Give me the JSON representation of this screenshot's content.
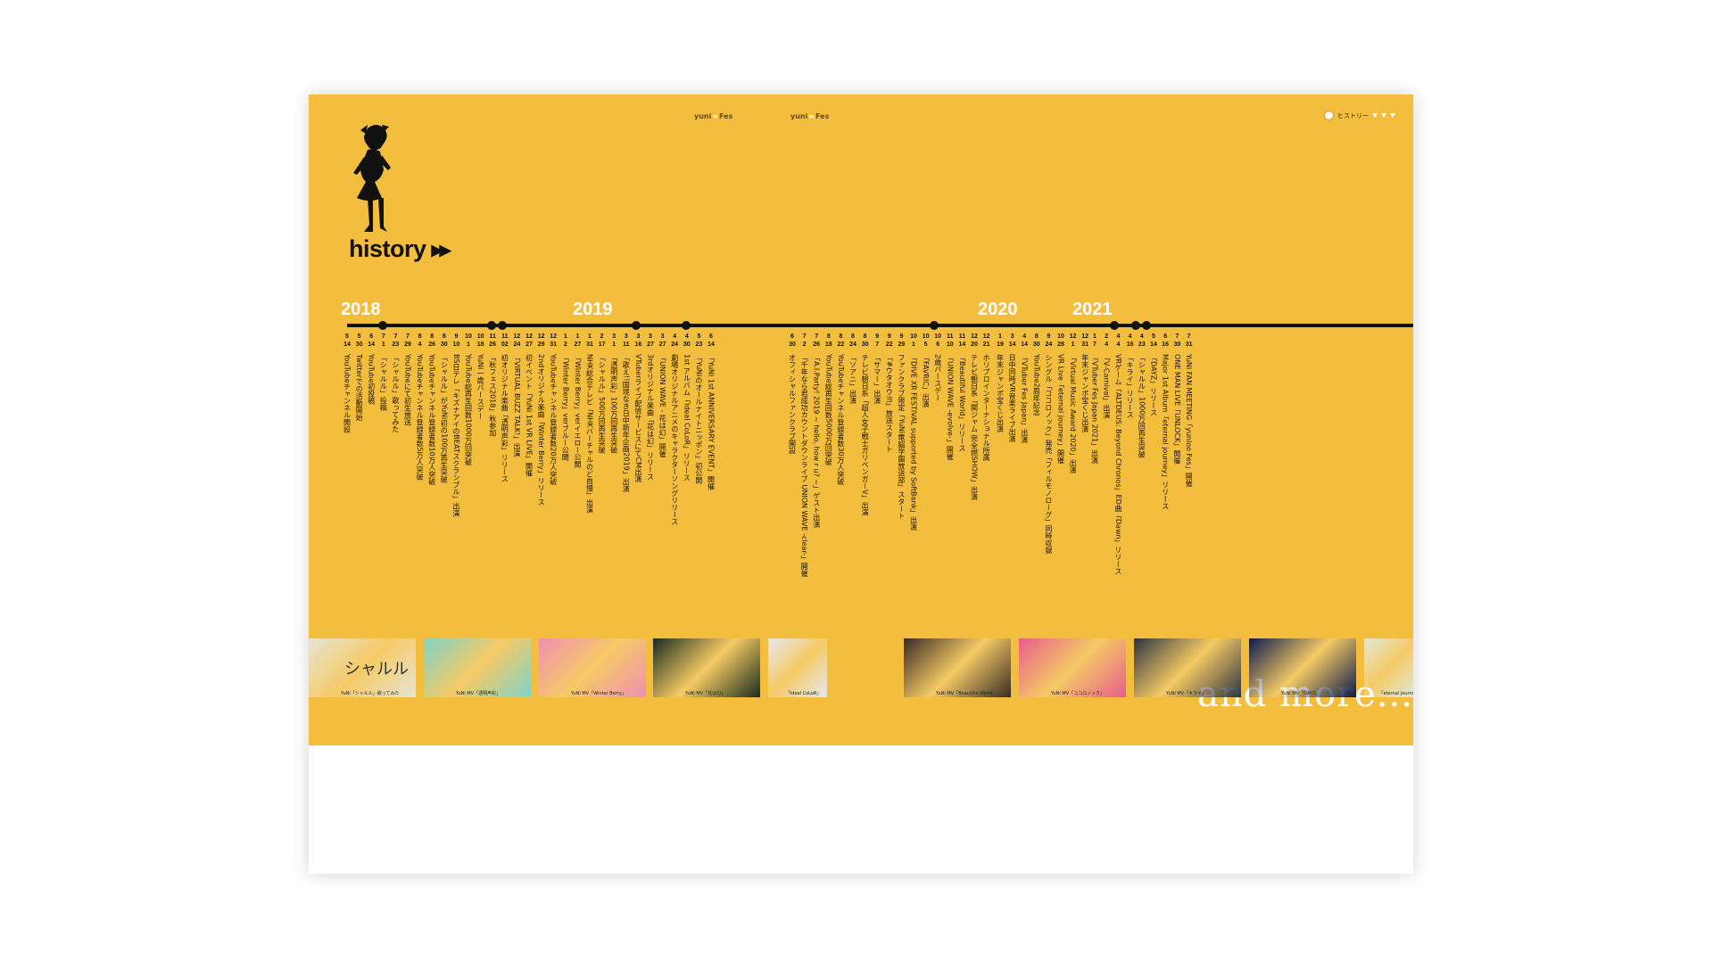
{
  "header": {
    "fest_logo_left": {
      "pre": "yuni",
      "mid": "∞",
      "post": "Fes"
    },
    "fest_logo_right": {
      "pre": "yuni",
      "mid": "∞",
      "post": "Fes"
    },
    "nav_label": "ヒストリー"
  },
  "title": "history",
  "title_arrow": "▶▶",
  "years": [
    "2018",
    "2019",
    "2020",
    "2021"
  ],
  "events": [
    {
      "m": "5",
      "d": "14",
      "t": "YouTubeチャンネル開設"
    },
    {
      "m": "5",
      "d": "30",
      "t": "Twitterでの活動開始"
    },
    {
      "m": "6",
      "d": "14",
      "t": "YouTube初投稿"
    },
    {
      "m": "7",
      "d": "1",
      "t": "「シャルル」投稿"
    },
    {
      "m": "7",
      "d": "23",
      "t": "「シャルル」歌ってみた"
    },
    {
      "m": "7",
      "d": "29",
      "t": "YouTubeにて初生放送"
    },
    {
      "m": "8",
      "d": "4",
      "t": "YouTubeチャンネル登録者数5万人突破"
    },
    {
      "m": "8",
      "d": "26",
      "t": "YouTubeチャンネル登録者数10万人突破"
    },
    {
      "m": "8",
      "d": "30",
      "t": "「シャルル」がYuNi初の100万再生突破"
    },
    {
      "m": "9",
      "d": "10",
      "t": "BS日テレ「キズナアイのBEATスクランブル」出演"
    },
    {
      "m": "10",
      "d": "1",
      "t": "YouTube総再生回数1000万回突破"
    },
    {
      "m": "10",
      "d": "18",
      "t": "YuNi一歳バースデー"
    },
    {
      "m": "11",
      "d": "26",
      "t": "「秋フェス2018」秋参加"
    },
    {
      "m": "11",
      "d": "02",
      "t": "初オリジナル楽曲「透明声彩」リリース"
    },
    {
      "m": "12",
      "d": "24",
      "t": "「VIRTUAL BUZZ TALK!」出演"
    },
    {
      "m": "12",
      "d": "27",
      "t": "初イベント「YuNi 1st VR LIVE」開催"
    },
    {
      "m": "12",
      "d": "29",
      "t": "2ndオリジナル楽曲「Winter Berry」リリース"
    },
    {
      "m": "12",
      "d": "31",
      "t": "YouTubeチャンネル登録者数20万人突破"
    },
    {
      "m": "1",
      "d": "2",
      "t": "「Winter Berry」verブルー公開"
    },
    {
      "m": "1",
      "d": "27",
      "t": "「Winter Berry」verイエロー公開"
    },
    {
      "m": "1",
      "d": "31",
      "t": "NHK総合テレビ「NHKバーチャルのど自慢」出演"
    },
    {
      "m": "2",
      "d": "17",
      "t": "「シャルル」500万回再生突破"
    },
    {
      "m": "3",
      "d": "1",
      "t": "「透明声彩」100万回再生突破"
    },
    {
      "m": "3",
      "d": "11",
      "t": "「歌え!!国境なき日中新年企画2019」出演"
    },
    {
      "m": "3",
      "d": "16",
      "t": "VTuberライブ配信サービスにてCM出演"
    },
    {
      "m": "3",
      "d": "27",
      "t": "3rdオリジナル楽曲「花は幻」リリース"
    },
    {
      "m": "3",
      "d": "27",
      "t": "「UNION WAVE - 花は幻」開催"
    },
    {
      "m": "4",
      "d": "24",
      "t": "劇場オリジナルアニメのキャラクターソングリリース"
    },
    {
      "m": "4",
      "d": "30",
      "t": "1st アルバム「Ideal CoLoR」リリース"
    },
    {
      "m": "5",
      "d": "23",
      "t": "「YuNiのオールナイトニッポン」初公開"
    },
    {
      "m": "6",
      "d": "14",
      "t": "「YuNi 1st ANNIVERSARY EVENT」開催"
    },
    {
      "m": "6",
      "d": "30",
      "t": "オフィシャルファンクラブ開設"
    },
    {
      "m": "7",
      "d": "2",
      "t": "「千年なら君成功カウントダウンライブ UNION WAVE -clear-」開催"
    },
    {
      "m": "7",
      "d": "26",
      "t": "「A.I.Party! 2019 ~ hello, how r u? ~」ゲスト出演"
    },
    {
      "m": "8",
      "d": "18",
      "t": "YouTube総再生回数5000万回突破"
    },
    {
      "m": "8",
      "d": "22",
      "t": "YouTubeチャンネル登録者数30万人突破"
    },
    {
      "m": "8",
      "d": "24",
      "t": "「ソアニ」出演"
    },
    {
      "m": "8",
      "d": "30",
      "t": "テレビ朝日系「超人女子戦士ガリベンガーV」出演"
    },
    {
      "m": "9",
      "d": "7",
      "t": "「サマー」出演"
    },
    {
      "m": "9",
      "d": "22",
      "t": "「#ウタオウヨ」放送スタート"
    },
    {
      "m": "9",
      "d": "29",
      "t": "ファンクラブ限定「YuNi電脳学園放送部」スタート"
    },
    {
      "m": "10",
      "d": "1",
      "t": "「DIVE XR FESTIVAL supported by SoftBank」出演"
    },
    {
      "m": "10",
      "d": "5",
      "t": "「FAVRIC」出演"
    },
    {
      "m": "10",
      "d": "6",
      "t": "2歳バースデー"
    },
    {
      "m": "11",
      "d": "10",
      "t": "「UNION WAVE -evolve-」開催"
    },
    {
      "m": "11",
      "d": "14",
      "t": "「Beautiful World」リリース"
    },
    {
      "m": "12",
      "d": "20",
      "t": "テレビ朝日系「関ジャム 完全燃SHOW」出演"
    },
    {
      "m": "12",
      "d": "21",
      "t": "ホリプロインターナショナル所属"
    },
    {
      "m": "1",
      "d": "19",
      "t": "年末ジャンボ宝くじ出演"
    },
    {
      "m": "3",
      "d": "14",
      "t": "日中同時VR音楽ライブ出演"
    },
    {
      "m": "4",
      "d": "14",
      "t": "「VTuber Fes Japan」出演"
    },
    {
      "m": "8",
      "d": "30",
      "t": "YouTube2周年記念"
    },
    {
      "m": "9",
      "d": "24",
      "t": "シングル「ココロノック」発売「フィルモノローグ」同時収録"
    },
    {
      "m": "10",
      "d": "28",
      "t": "VR Live「eternal journey」開催"
    },
    {
      "m": "12",
      "d": "1",
      "t": "「Virtual Music Award 2020」出演"
    },
    {
      "m": "12",
      "d": "31",
      "t": "年末ジャンボ宝くじ出演"
    },
    {
      "m": "1",
      "d": "7",
      "t": "「VTuber Fes Japan 2021」出演"
    },
    {
      "m": "2",
      "d": "4",
      "t": "「V-Carnival」出演"
    },
    {
      "m": "4",
      "d": "4",
      "t": "VRゲーム「ALTDEUS: Beyond Chronos」ED曲「Dawn」リリース"
    },
    {
      "m": "4",
      "d": "16",
      "t": "「キライ」リリース"
    },
    {
      "m": "4",
      "d": "23",
      "t": "「シャルル」1000万回再生突破"
    },
    {
      "m": "5",
      "d": "14",
      "t": "「DAYZ」リリース"
    },
    {
      "m": "6",
      "d": "16",
      "t": "Major 1st Album「eternal journey」リリース"
    },
    {
      "m": "7",
      "d": "30",
      "t": "ONE MAN LIVE「UNLOCK」開催"
    },
    {
      "m": "7",
      "d": "31",
      "t": "YuNi FAN MEETING「yunioo Fes」開催"
    }
  ],
  "and_more": "and more...",
  "thumbnails": [
    {
      "caption": "YuNi「シャルル」歌ってみた",
      "text": "シャルル",
      "bg": "#e8e3d4"
    },
    {
      "caption": "YuNi MV「透明声彩」",
      "text": "",
      "bg": "#7fd4c8"
    },
    {
      "caption": "YuNi MV「Winter Berry」",
      "text": "",
      "bg": "#f08fb2"
    },
    {
      "caption": "YuNi MV「花は幻」",
      "text": "",
      "bg": "#1b2c1e"
    },
    {
      "caption": "「Ideal CoLoR」",
      "text": "",
      "bg": "#e6e8ef"
    },
    {
      "caption": "YuNi MV「Beautiful World」",
      "text": "",
      "bg": "#3a2a25"
    },
    {
      "caption": "YuNi MV「ココロノック」",
      "text": "",
      "bg": "#e85d8b"
    },
    {
      "caption": "YuNi MV「キライ」",
      "text": "",
      "bg": "#2e3340"
    },
    {
      "caption": "YuNi MV「DAYZ」",
      "text": "",
      "bg": "#0d1a4a"
    },
    {
      "caption": "「eternal journey」",
      "text": "",
      "bg": "#dfe9d8"
    }
  ]
}
